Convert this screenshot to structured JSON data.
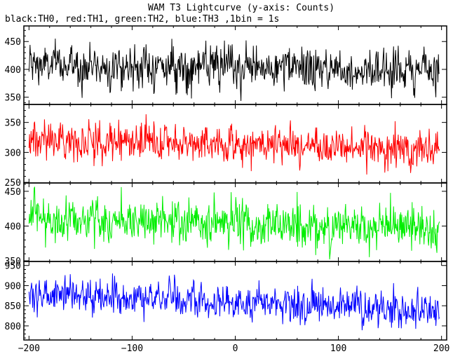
{
  "chart_data": {
    "type": "line",
    "title": "WAM T3 Lightcurve (y-axis: Counts)",
    "subtitle": "black:TH0, red:TH1, green:TH2, blue:TH3 ,1bin = 1s",
    "xlim": [
      -205,
      205
    ],
    "x_ticks": [
      -200,
      -100,
      0,
      100,
      200
    ],
    "x_tick_labels": [
      "−200",
      "−100",
      "0",
      "100",
      "200"
    ],
    "x_range": [
      -200,
      198
    ],
    "panels": [
      {
        "series": "TH0",
        "color": "#000000",
        "ylim": [
          337,
          478
        ],
        "y_ticks": [
          350,
          400,
          450
        ],
        "mean_start": 408,
        "mean_end": 398,
        "noise": 22,
        "max_excursion": 475,
        "min_excursion": 340
      },
      {
        "series": "TH1",
        "color": "#ff0000",
        "ylim": [
          249,
          380
        ],
        "y_ticks": [
          250,
          300,
          350
        ],
        "mean_start": 322,
        "mean_end": 305,
        "noise": 18,
        "max_excursion": 372,
        "min_excursion": 252
      },
      {
        "series": "TH2",
        "color": "#00ee00",
        "ylim": [
          349,
          462
        ],
        "y_ticks": [
          350,
          400,
          450
        ],
        "mean_start": 412,
        "mean_end": 395,
        "noise": 19,
        "max_excursion": 458,
        "min_excursion": 352
      },
      {
        "series": "TH3",
        "color": "#0000ff",
        "ylim": [
          765,
          960
        ],
        "y_ticks": [
          800,
          850,
          900,
          950
        ],
        "mean_start": 880,
        "mean_end": 838,
        "noise": 25,
        "max_excursion": 950,
        "min_excursion": 780
      }
    ],
    "grid": false,
    "legend": "none"
  }
}
